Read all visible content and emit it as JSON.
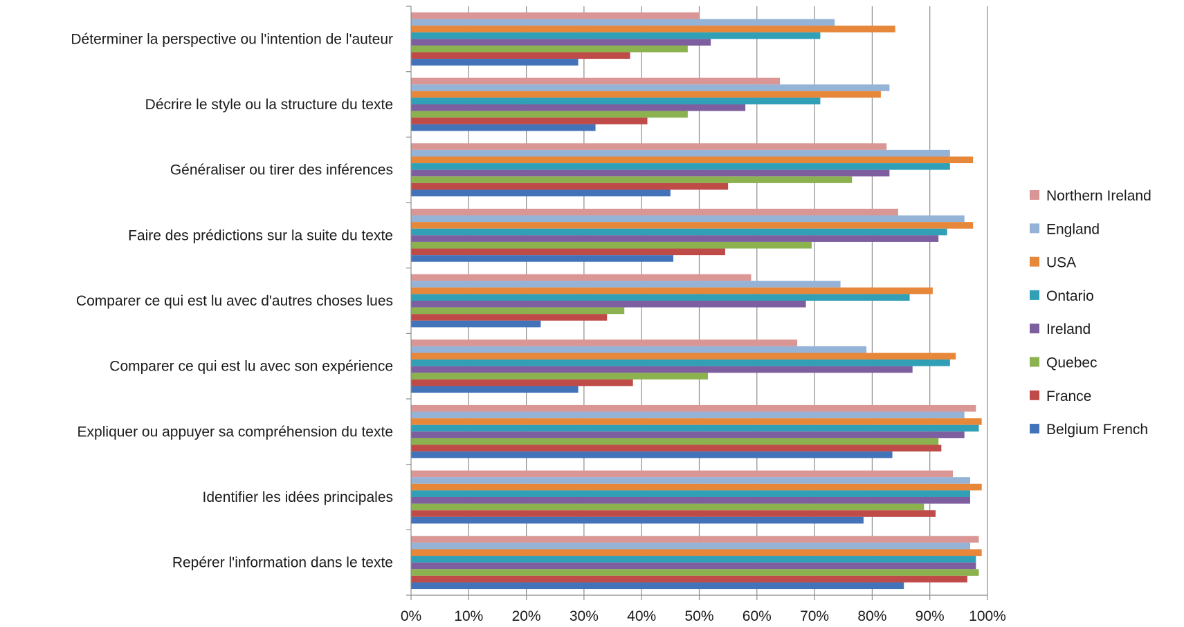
{
  "chart_data": {
    "type": "bar",
    "orientation": "horizontal",
    "title": "",
    "xlabel": "",
    "ylabel": "",
    "xlim": [
      0,
      100
    ],
    "x_unit": "%",
    "grid": true,
    "legend_position": "right",
    "x_ticks": [
      "0%",
      "10%",
      "20%",
      "30%",
      "40%",
      "50%",
      "60%",
      "70%",
      "80%",
      "90%",
      "100%"
    ],
    "categories": [
      "Déterminer la perspective ou l'intention de l'auteur",
      "Décrire le style ou la structure du texte",
      "Généraliser ou tirer des inférences",
      "Faire des prédictions sur la suite du texte",
      "Comparer ce qui est lu avec d'autres choses lues",
      "Comparer ce qui est lu avec son expérience",
      "Expliquer ou appuyer sa compréhension du texte",
      "Identifier les idées principales",
      "Repérer l'information dans le texte"
    ],
    "series": [
      {
        "name": "Northern Ireland",
        "color": "#d99694",
        "values": [
          50,
          64,
          82.5,
          84.5,
          59,
          67,
          98,
          94,
          98.5
        ]
      },
      {
        "name": "England",
        "color": "#95b3d7",
        "values": [
          73.5,
          83,
          93.5,
          96,
          74.5,
          79,
          96,
          97,
          97
        ]
      },
      {
        "name": "USA",
        "color": "#e6873a",
        "values": [
          84,
          81.5,
          97.5,
          97.5,
          90.5,
          94.5,
          99,
          99,
          99
        ]
      },
      {
        "name": "Ontario",
        "color": "#31a0b6",
        "values": [
          71,
          71,
          93.5,
          93,
          86.5,
          93.5,
          98.5,
          97,
          98
        ]
      },
      {
        "name": "Ireland",
        "color": "#7d5fa0",
        "values": [
          52,
          58,
          83,
          91.5,
          68.5,
          87,
          96,
          97,
          98
        ]
      },
      {
        "name": "Quebec",
        "color": "#8cb14f",
        "values": [
          48,
          48,
          76.5,
          69.5,
          37,
          51.5,
          91.5,
          89,
          98.5
        ]
      },
      {
        "name": "France",
        "color": "#be4b48",
        "values": [
          38,
          41,
          55,
          54.5,
          34,
          38.5,
          92,
          91,
          96.5
        ]
      },
      {
        "name": "Belgium French",
        "color": "#4272b8",
        "values": [
          29,
          32,
          45,
          45.5,
          22.5,
          29,
          83.5,
          78.5,
          85.5
        ]
      }
    ]
  }
}
